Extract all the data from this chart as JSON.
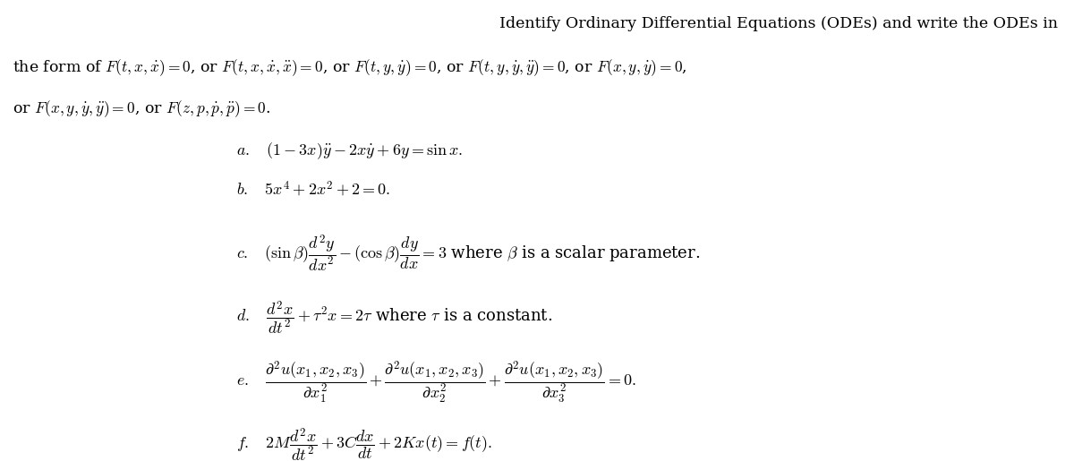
{
  "background_color": "#ffffff",
  "figsize": [
    12.0,
    5.15
  ],
  "dpi": 100,
  "title_line1": "Identify Ordinary Differential Equations (ODEs) and write the ODEs in",
  "title_line2": "the form of $F(t, x, \\dot{x}) = 0$, or $F(t, x, \\dot{x}, \\ddot{x}) = 0$, or $F(t, y, \\dot{y}) = 0$, or $F(t, y, \\dot{y}, \\ddot{y}) = 0$, or $F(x, y, \\dot{y}) = 0$,",
  "title_line3": "or $F(x, y, \\dot{y}, \\ddot{y}) = 0$, or $F(z, p, \\dot{p}, \\ddot{p}) = 0$.",
  "item_a": "$a.\\quad (1-3x)\\ddot{y} - 2x\\dot{y} + 6y = \\sin x.$",
  "item_b": "$b.\\quad 5x^4 + 2x^2 + 2 = 0.$",
  "item_c": "$c.\\quad (\\sin\\beta)\\dfrac{d^2y}{dx^2} - (\\cos\\beta)\\dfrac{dy}{dx} = 3$ where $\\beta$ is a scalar parameter.",
  "item_d": "$d.\\quad \\dfrac{d^2x}{dt^2} + \\tau^2 x = 2\\tau$ where $\\tau$ is a constant.",
  "item_e": "$e.\\quad \\dfrac{\\partial^2 u(x_1, x_2, x_3)}{\\partial x_1^2} + \\dfrac{\\partial^2 u(x_1, x_2, x_3)}{\\partial x_2^2} + \\dfrac{\\partial^2 u(x_1, x_2, x_3)}{\\partial x_3^2} = 0.$",
  "item_f": "$f.\\quad 2M\\dfrac{d^2x}{dt^2} + 3C\\dfrac{dx}{dt} + 2Kx(t) = f(t).$",
  "fontsize_header": 12.5,
  "fontsize_items": 13.0,
  "text_color": "#000000"
}
